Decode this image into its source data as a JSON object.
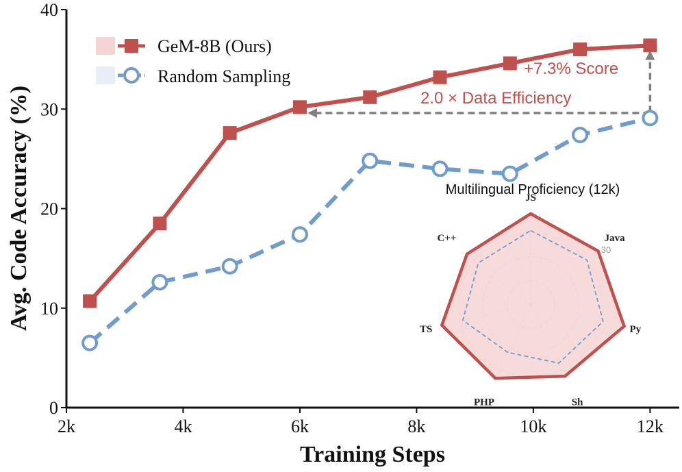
{
  "colors": {
    "ours": "#c0504d",
    "ours_fill": "#f5d5d4",
    "random": "#6f9bcd",
    "random_fill": "#e8eef8",
    "arrow": "#808080"
  },
  "chart_data": {
    "type": "line",
    "title": "",
    "xlabel": "Training Steps",
    "ylabel": "Avg. Code Accuracy (%)",
    "xlim": [
      2,
      12.5
    ],
    "ylim": [
      0,
      40
    ],
    "xticks": [
      2,
      4,
      6,
      8,
      10,
      12
    ],
    "xtick_labels": [
      "2k",
      "4k",
      "6k",
      "8k",
      "10k",
      "12k"
    ],
    "yticks": [
      0,
      10,
      20,
      30,
      40
    ],
    "ytick_labels": [
      "0",
      "10",
      "20",
      "30",
      "40"
    ],
    "legend": [
      "GeM-8B (Ours)",
      "Random Sampling"
    ],
    "legend_position": "top-left",
    "series": [
      {
        "name": "GeM-8B (Ours)",
        "style": "solid-square",
        "x": [
          2.4,
          3.6,
          4.8,
          6.0,
          7.2,
          8.4,
          9.6,
          10.8,
          12.0
        ],
        "values": [
          10.7,
          18.5,
          27.6,
          30.2,
          31.2,
          33.2,
          34.6,
          36.0,
          36.4
        ]
      },
      {
        "name": "Random Sampling",
        "style": "dashed-circle",
        "x": [
          2.4,
          3.6,
          4.8,
          6.0,
          7.2,
          8.4,
          9.6,
          10.8,
          12.0
        ],
        "values": [
          6.5,
          12.6,
          14.2,
          17.4,
          24.8,
          24.0,
          23.5,
          27.4,
          29.1
        ]
      }
    ],
    "annotations": [
      {
        "text": "+7.3% Score",
        "from": {
          "x": 12.0,
          "y": 29.1
        },
        "to": {
          "x": 12.0,
          "y": 36.4
        },
        "type": "vertical-arrow"
      },
      {
        "text": "2.0 × Data Efficiency",
        "from": {
          "x": 12.0,
          "y": 29.6
        },
        "to": {
          "x": 6.0,
          "y": 29.6
        },
        "type": "horizontal-arrow"
      }
    ],
    "inset": {
      "type": "radar",
      "title": "Multilingual Proficiency (12k)",
      "axes": [
        "JS",
        "Java",
        "Py",
        "Sh",
        "PHP",
        "TS",
        "C++"
      ],
      "grid_tick": "30",
      "rmax": 40,
      "series": [
        {
          "name": "GeM-8B (Ours)",
          "values": [
            38,
            36,
            40,
            33,
            34,
            38,
            34
          ]
        },
        {
          "name": "Random Sampling",
          "values": [
            31,
            30,
            31,
            27,
            22,
            29,
            28
          ]
        }
      ]
    }
  }
}
